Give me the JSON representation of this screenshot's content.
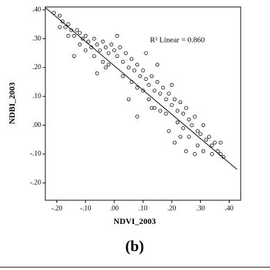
{
  "chart_data": {
    "type": "scatter",
    "x_label": "NDVI_2003",
    "y_label": "NDBI_2003",
    "annotation": "R² Linear = 0.860",
    "caption": "(b)",
    "xlim": [
      -0.24,
      0.44
    ],
    "ylim": [
      -0.26,
      0.41
    ],
    "xticks": [
      {
        "value": -0.2,
        "label": "-.20"
      },
      {
        "value": -0.1,
        "label": "-.10"
      },
      {
        "value": 0,
        "label": ".00"
      },
      {
        "value": 0.1,
        "label": ".10"
      },
      {
        "value": 0.2,
        "label": ".20"
      },
      {
        "value": 0.3,
        "label": ".30"
      },
      {
        "value": 0.4,
        "label": ".40"
      }
    ],
    "yticks": [
      {
        "value": 0.4,
        "label": ".40"
      },
      {
        "value": 0.3,
        "label": ".30"
      },
      {
        "value": 0.2,
        "label": ".20"
      },
      {
        "value": 0.1,
        "label": ".10"
      },
      {
        "value": 0,
        "label": ".00"
      },
      {
        "value": -0.1,
        "label": "-.10"
      },
      {
        "value": -0.2,
        "label": "-.20"
      }
    ],
    "fit": {
      "x": [
        -0.239,
        0.427
      ],
      "y": [
        0.407,
        -0.153
      ]
    },
    "x": [
      -0.21,
      -0.19,
      -0.18,
      -0.17,
      -0.19,
      -0.16,
      -0.15,
      -0.14,
      -0.16,
      -0.13,
      -0.12,
      -0.11,
      -0.12,
      -0.1,
      -0.09,
      -0.08,
      -0.1,
      -0.07,
      -0.06,
      -0.05,
      -0.07,
      -0.04,
      -0.03,
      -0.02,
      -0.04,
      -0.06,
      -0.01,
      0.0,
      0.01,
      -0.02,
      0.02,
      0.03,
      0.04,
      0.05,
      0.03,
      0.06,
      0.07,
      0.08,
      0.06,
      0.09,
      0.1,
      0.11,
      0.08,
      0.12,
      0.13,
      0.1,
      0.14,
      0.15,
      0.16,
      0.12,
      0.17,
      0.18,
      0.14,
      0.19,
      0.2,
      0.21,
      0.22,
      0.18,
      0.23,
      0.24,
      0.22,
      0.25,
      0.26,
      0.27,
      0.24,
      0.28,
      0.29,
      0.26,
      0.3,
      0.31,
      0.32,
      0.29,
      0.33,
      0.34,
      0.35,
      0.36,
      0.37,
      0.38,
      0.37,
      0.21,
      0.25,
      0.28,
      0.19,
      0.08,
      0.05,
      -0.03,
      0.11,
      0.15,
      0.2,
      0.01,
      -0.14,
      0.23,
      0.16,
      0.13,
      0.31,
      0.34
    ],
    "values": [
      0.39,
      0.38,
      0.36,
      0.34,
      0.34,
      0.35,
      0.33,
      0.31,
      0.31,
      0.33,
      0.32,
      0.3,
      0.28,
      0.31,
      0.29,
      0.27,
      0.26,
      0.3,
      0.28,
      0.26,
      0.24,
      0.29,
      0.27,
      0.25,
      0.22,
      0.18,
      0.28,
      0.26,
      0.24,
      0.21,
      0.27,
      0.22,
      0.25,
      0.2,
      0.17,
      0.23,
      0.19,
      0.21,
      0.15,
      0.17,
      0.19,
      0.16,
      0.13,
      0.14,
      0.17,
      0.12,
      0.12,
      0.15,
      0.11,
      0.09,
      0.13,
      0.09,
      0.06,
      0.11,
      0.07,
      0.09,
      0.05,
      0.04,
      0.08,
      0.04,
      0.01,
      0.06,
      0.02,
      0.0,
      -0.01,
      0.03,
      -0.02,
      -0.04,
      -0.03,
      0.0,
      -0.05,
      -0.07,
      -0.04,
      -0.07,
      -0.06,
      -0.09,
      -0.1,
      -0.11,
      -0.06,
      -0.06,
      -0.09,
      -0.1,
      -0.02,
      0.03,
      0.09,
      0.2,
      0.25,
      0.21,
      0.14,
      0.31,
      0.24,
      -0.04,
      0.05,
      0.06,
      -0.09,
      -0.1
    ]
  }
}
